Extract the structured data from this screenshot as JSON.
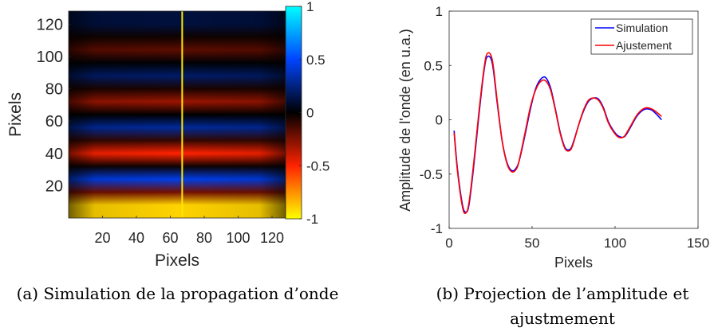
{
  "figure": {
    "caption_a": "(a) Simulation de la propagation d’onde",
    "caption_b_line1": "(b) Projection de l’amplitude et",
    "caption_b_line2": "ajustmement"
  },
  "chart_data": [
    {
      "type": "heatmap",
      "xlabel": "Pixels",
      "ylabel": "Pixels",
      "xlim": [
        0,
        128
      ],
      "ylim": [
        0,
        128
      ],
      "xticks": [
        20,
        40,
        60,
        80,
        100,
        120
      ],
      "xtick_labels": [
        "20",
        "40",
        "60",
        "80",
        "100",
        "120"
      ],
      "yticks": [
        20,
        40,
        60,
        80,
        100,
        120
      ],
      "ytick_labels": [
        "20",
        "40",
        "60",
        "80",
        "100",
        "120"
      ],
      "colormap": "jet-reversed (yellow-red-black-blue-cyan)",
      "colorbar": {
        "ticks": [
          1,
          0.5,
          0,
          -0.5,
          -1
        ],
        "tick_labels": [
          "1",
          "0.5",
          "0",
          "-0.5",
          "-1"
        ],
        "range": [
          -1,
          1
        ]
      },
      "bands": [
        {
          "y_center": 8,
          "value": -0.9
        },
        {
          "y_center": 24,
          "value": 0.45
        },
        {
          "y_center": 40,
          "value": -0.5
        },
        {
          "y_center": 56,
          "value": 0.3
        },
        {
          "y_center": 72,
          "value": -0.3
        },
        {
          "y_center": 88,
          "value": 0.2
        },
        {
          "y_center": 104,
          "value": -0.18
        },
        {
          "y_center": 120,
          "value": 0.12
        }
      ],
      "cursor_line": {
        "x": 67,
        "color": "#ffe600"
      }
    },
    {
      "type": "line",
      "xlabel": "Pixels",
      "ylabel": "Amplitude de l'onde (en u.a.)",
      "xlim": [
        0,
        150
      ],
      "ylim": [
        -1,
        1
      ],
      "xticks": [
        0,
        50,
        100,
        150
      ],
      "xtick_labels": [
        "0",
        "50",
        "100",
        "150"
      ],
      "yticks": [
        -1,
        -0.5,
        0,
        0.5,
        1
      ],
      "ytick_labels": [
        "-1",
        "-0.5",
        "0",
        "0.5",
        "1"
      ],
      "legend_position": "top-right",
      "series": [
        {
          "name": "Simulation",
          "color": "#0000ff",
          "x": [
            3,
            5,
            8,
            10,
            12,
            15,
            18,
            21,
            23,
            26,
            29,
            32,
            35,
            38,
            41,
            43,
            46,
            49,
            52,
            55,
            58,
            61,
            64,
            67,
            70,
            73,
            75,
            78,
            81,
            84,
            87,
            90,
            93,
            96,
            99,
            102,
            105,
            107,
            110,
            113,
            116,
            119,
            122,
            125,
            128
          ],
          "y": [
            -0.1,
            -0.45,
            -0.78,
            -0.85,
            -0.78,
            -0.4,
            0.05,
            0.45,
            0.58,
            0.52,
            0.15,
            -0.2,
            -0.4,
            -0.47,
            -0.43,
            -0.33,
            -0.12,
            0.1,
            0.28,
            0.37,
            0.39,
            0.3,
            0.1,
            -0.12,
            -0.26,
            -0.27,
            -0.2,
            -0.05,
            0.08,
            0.17,
            0.2,
            0.19,
            0.11,
            -0.02,
            -0.1,
            -0.15,
            -0.16,
            -0.13,
            -0.05,
            0.03,
            0.08,
            0.1,
            0.09,
            0.05,
            0.0
          ]
        },
        {
          "name": "Ajustement",
          "color": "#ff0000",
          "x": [
            3,
            5,
            8,
            10,
            12,
            15,
            18,
            21,
            23,
            26,
            29,
            32,
            35,
            38,
            41,
            43,
            46,
            49,
            52,
            55,
            58,
            61,
            64,
            67,
            70,
            73,
            75,
            78,
            81,
            84,
            87,
            90,
            93,
            96,
            99,
            102,
            105,
            107,
            110,
            113,
            116,
            119,
            122,
            125,
            128
          ],
          "y": [
            -0.12,
            -0.47,
            -0.8,
            -0.86,
            -0.76,
            -0.37,
            0.08,
            0.47,
            0.61,
            0.55,
            0.17,
            -0.2,
            -0.41,
            -0.48,
            -0.44,
            -0.32,
            -0.1,
            0.12,
            0.27,
            0.35,
            0.36,
            0.28,
            0.09,
            -0.13,
            -0.27,
            -0.28,
            -0.21,
            -0.05,
            0.09,
            0.18,
            0.2,
            0.18,
            0.1,
            -0.03,
            -0.11,
            -0.16,
            -0.16,
            -0.12,
            -0.04,
            0.04,
            0.09,
            0.11,
            0.1,
            0.07,
            0.03
          ]
        }
      ]
    }
  ]
}
